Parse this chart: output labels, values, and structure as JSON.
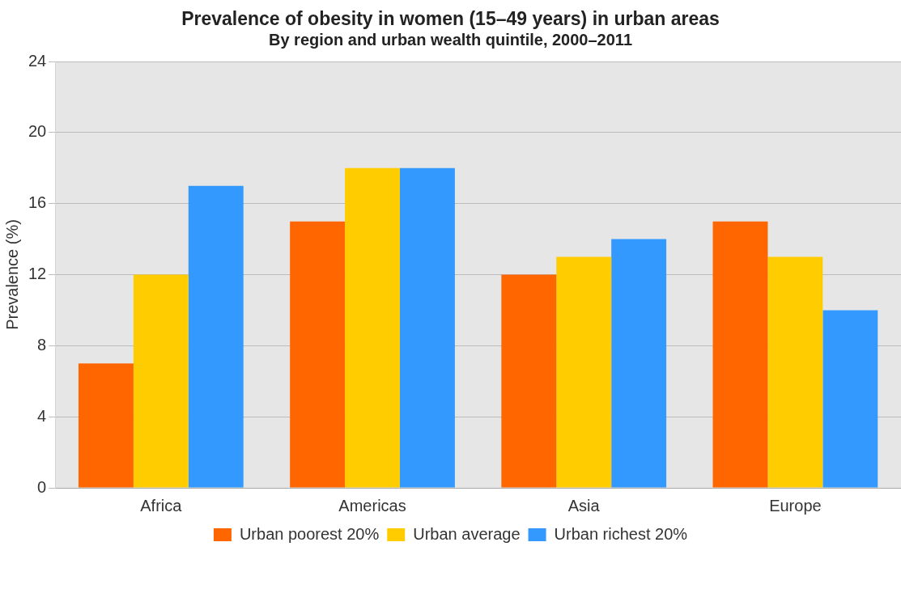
{
  "chart_data": {
    "type": "bar",
    "title": "Prevalence of obesity in women (15–49 years) in urban areas",
    "subtitle": "By region and urban wealth quintile, 2000–2011",
    "ylabel": "Prevalence (%)",
    "categories": [
      "Africa",
      "Americas",
      "Asia",
      "Europe"
    ],
    "series": [
      {
        "name": "Urban poorest 20%",
        "color": "#ff6600",
        "values": [
          7,
          15,
          12,
          15
        ]
      },
      {
        "name": "Urban average",
        "color": "#ffcc00",
        "values": [
          12,
          18,
          13,
          13
        ]
      },
      {
        "name": "Urban richest 20%",
        "color": "#3399ff",
        "values": [
          17,
          18,
          14,
          10
        ]
      }
    ],
    "ylim": [
      0,
      24
    ],
    "yticks": [
      0,
      4,
      8,
      12,
      16,
      20,
      24
    ],
    "grid": "y",
    "legend": "bottom"
  }
}
